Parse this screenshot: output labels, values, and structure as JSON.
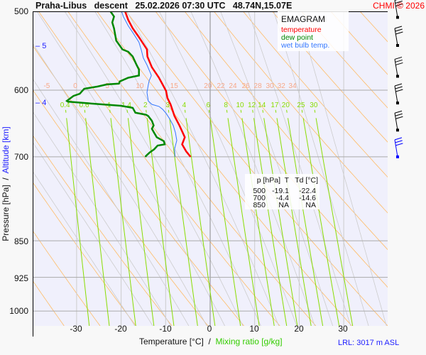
{
  "header": {
    "title": "Praha-Libus   descent   25.02.2026 07:30 UTC   48.74N,15.07E",
    "copyright": "CHMI © 2026"
  },
  "legend": {
    "title": "EMAGRAM",
    "temperature": "temperature",
    "dew_point": "dew point",
    "wet_bulb": "wet bulb temp."
  },
  "colors": {
    "temperature": "#ff0000",
    "dew_point": "#008800",
    "wet_bulb": "#3377ff",
    "dry_adiabat": "#ffbb66",
    "moist_adiabat": "#cccccc",
    "mixing_ratio": "#88dd00",
    "plot_background": "#f0f0fc"
  },
  "table": {
    "headers": [
      "p [hPa]",
      "T",
      "Td [°C]"
    ],
    "rows": [
      [
        "500",
        "-19.1",
        "-22.4"
      ],
      [
        "700",
        "-4.4",
        "-14.6"
      ],
      [
        "850",
        "NA",
        "NA"
      ]
    ]
  },
  "footer": {
    "lrl": "LRL: 3017 m ASL"
  },
  "chart_data": {
    "type": "line",
    "title": "EMAGRAM",
    "xlabel": "Temperature [°C]",
    "xlabel2": "Mixing ratio [g/kg]",
    "ylabel": "Pressure [hPa]",
    "ylabel2": "Altitude [km]",
    "xlim": [
      -40,
      40
    ],
    "ylim": [
      1000,
      500
    ],
    "y_scale": "log",
    "grid": true,
    "legend_position": "top-right",
    "x_ticks": [
      "-30",
      "-20",
      "-10",
      "0",
      "10",
      "20",
      "30"
    ],
    "y_ticks": [
      "500",
      "600",
      "700",
      "850",
      "925",
      "1000"
    ],
    "altitude_ticks": [
      {
        "label": "5",
        "p": 557
      },
      {
        "label": "4",
        "p": 616
      }
    ],
    "adiabat_labels": [
      "-5",
      "0",
      "5",
      "10",
      "15",
      "20",
      "22",
      "24",
      "26",
      "28",
      "30",
      "32",
      "34"
    ],
    "mixing_ratio_labels": [
      "0.4",
      "0.6",
      "1",
      "1.4",
      "2",
      "3",
      "4",
      "6",
      "8",
      "10",
      "12",
      "14",
      "17",
      "20",
      "25",
      "30"
    ],
    "series": [
      {
        "name": "temperature",
        "p": [
          500,
          510,
          520,
          530,
          546,
          555,
          569,
          583,
          601,
          611,
          620,
          637,
          651,
          669,
          680,
          691,
          700
        ],
        "t": [
          -19.1,
          -18.4,
          -17.4,
          -16.1,
          -14.2,
          -14.1,
          -13.1,
          -11.5,
          -9.9,
          -9.6,
          -8.9,
          -8.0,
          -6.9,
          -5.7,
          -6.3,
          -5.4,
          -4.4
        ]
      },
      {
        "name": "dew point",
        "p": [
          500,
          506,
          513,
          520,
          535,
          546,
          549,
          555,
          565,
          572,
          580,
          583,
          588,
          591,
          592,
          595,
          598,
          605,
          608,
          615,
          616,
          619,
          622,
          625,
          632,
          635,
          637,
          644,
          651,
          656,
          662,
          669,
          675,
          680,
          682,
          688,
          693,
          697,
          700
        ],
        "t": [
          -22.4,
          -21.6,
          -22.0,
          -21.6,
          -21.1,
          -19.7,
          -18.4,
          -17.4,
          -16.6,
          -16.0,
          -16.0,
          -18.4,
          -20.3,
          -20.5,
          -23.2,
          -25.3,
          -28.3,
          -29.3,
          -30.7,
          -32.2,
          -32.0,
          -26.4,
          -20.0,
          -17.4,
          -16.8,
          -14.4,
          -13.9,
          -13.1,
          -12.7,
          -13.1,
          -12.6,
          -12.0,
          -10.4,
          -10.2,
          -11.8,
          -12.6,
          -13.6,
          -14.2,
          -14.6
        ]
      },
      {
        "name": "wet bulb temp.",
        "p": [
          500,
          506,
          517,
          525,
          537,
          546,
          557,
          566,
          577,
          580,
          587,
          593,
          603,
          615,
          620,
          623,
          627,
          633,
          641,
          651,
          662,
          674,
          682,
          688,
          700
        ],
        "t": [
          -19.9,
          -19.5,
          -18.4,
          -17.4,
          -16.0,
          -15.5,
          -15.0,
          -14.2,
          -13.4,
          -13.2,
          -13.7,
          -13.9,
          -14.2,
          -13.9,
          -13.1,
          -11.5,
          -10.7,
          -9.9,
          -9.1,
          -8.3,
          -7.8,
          -7.5,
          -7.8,
          -8.0,
          -7.9
        ]
      }
    ],
    "wind_barbs": [
      {
        "p": 507,
        "barbs": 3
      },
      {
        "p": 541,
        "barbs": 3
      },
      {
        "p": 581,
        "barbs": 3
      },
      {
        "p": 618,
        "barbs": 3
      },
      {
        "p": 658,
        "barbs": 3
      },
      {
        "p": 700,
        "barbs": 3,
        "color": "#0000ff"
      }
    ]
  }
}
